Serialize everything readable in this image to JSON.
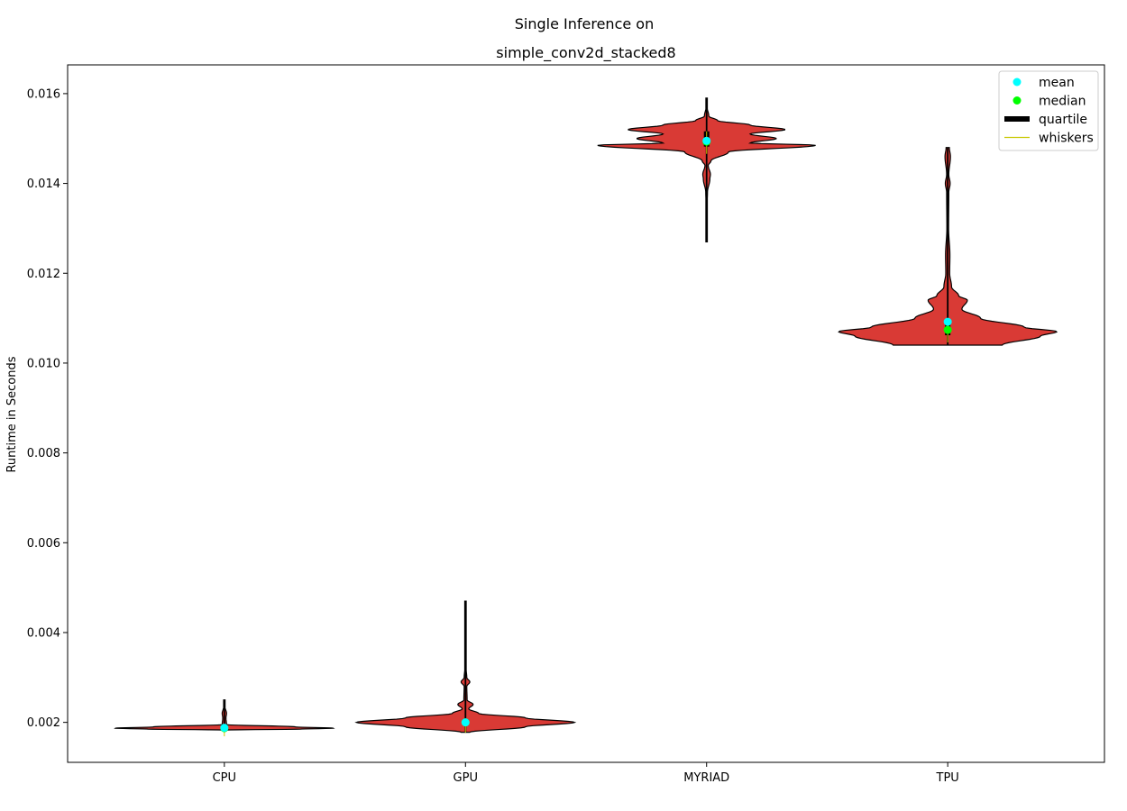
{
  "chart_data": {
    "type": "violin",
    "suptitle": "Single Inference on",
    "title": "simple_conv2d_stacked8",
    "xlabel": "",
    "ylabel": "Runtime in Seconds",
    "ylim": [
      0.00111,
      0.01664
    ],
    "yticks": [
      "0.002",
      "0.004",
      "0.006",
      "0.008",
      "0.010",
      "0.012",
      "0.014",
      "0.016"
    ],
    "ytick_values": [
      0.002,
      0.004,
      0.006,
      0.008,
      0.01,
      0.012,
      0.014,
      0.016
    ],
    "categories": [
      "CPU",
      "GPU",
      "MYRIAD",
      "TPU"
    ],
    "violin_color": "#d93a35",
    "colors": {
      "mean": "#00ffff",
      "median": "#00ff00",
      "quartile": "#000000",
      "whiskers": "#c8c800"
    },
    "legend": {
      "position": "top-right",
      "entries": [
        {
          "key": "mean",
          "label": "mean"
        },
        {
          "key": "median",
          "label": "median"
        },
        {
          "key": "quartile",
          "label": "quartile"
        },
        {
          "key": "whiskers",
          "label": "whiskers"
        }
      ]
    },
    "series": [
      {
        "category": "CPU",
        "min": 0.00183,
        "max": 0.0025,
        "mean": 0.00188,
        "median": 0.00187,
        "q1": 0.00185,
        "q3": 0.0019,
        "profile": [
          [
            0.00183,
            0.02
          ],
          [
            0.00185,
            0.7
          ],
          [
            0.00187,
            1.0
          ],
          [
            0.0019,
            0.65
          ],
          [
            0.00195,
            0.02
          ],
          [
            0.0021,
            0.015
          ],
          [
            0.0022,
            0.02
          ],
          [
            0.00235,
            0.006
          ],
          [
            0.0025,
            0.003
          ]
        ]
      },
      {
        "category": "GPU",
        "min": 0.00178,
        "max": 0.0047,
        "mean": 0.002,
        "median": 0.002,
        "q1": 0.00193,
        "q3": 0.00207,
        "profile": [
          [
            0.00178,
            0.04
          ],
          [
            0.0019,
            0.55
          ],
          [
            0.002,
            1.0
          ],
          [
            0.0021,
            0.55
          ],
          [
            0.0022,
            0.12
          ],
          [
            0.0023,
            0.03
          ],
          [
            0.0024,
            0.07
          ],
          [
            0.0025,
            0.015
          ],
          [
            0.0028,
            0.012
          ],
          [
            0.0029,
            0.04
          ],
          [
            0.003,
            0.012
          ],
          [
            0.0032,
            0.006
          ],
          [
            0.0037,
            0.003
          ],
          [
            0.0047,
            0.002
          ]
        ]
      },
      {
        "category": "MYRIAD",
        "min": 0.0127,
        "max": 0.0159,
        "mean": 0.01495,
        "median": 0.01493,
        "q1": 0.01482,
        "q3": 0.01516,
        "profile": [
          [
            0.0127,
            0.002
          ],
          [
            0.0135,
            0.004
          ],
          [
            0.0138,
            0.008
          ],
          [
            0.0141,
            0.03
          ],
          [
            0.0142,
            0.035
          ],
          [
            0.0144,
            0.015
          ],
          [
            0.0145,
            0.04
          ],
          [
            0.0147,
            0.2
          ],
          [
            0.01485,
            1.0
          ],
          [
            0.0149,
            0.4
          ],
          [
            0.015,
            0.64
          ],
          [
            0.0151,
            0.4
          ],
          [
            0.0152,
            0.72
          ],
          [
            0.0153,
            0.4
          ],
          [
            0.0154,
            0.1
          ],
          [
            0.0155,
            0.02
          ],
          [
            0.0157,
            0.005
          ],
          [
            0.0159,
            0.002
          ]
        ]
      },
      {
        "category": "TPU",
        "min": 0.0104,
        "max": 0.0148,
        "mean": 0.01092,
        "median": 0.01074,
        "q1": 0.01062,
        "q3": 0.01095,
        "profile": [
          [
            0.0104,
            0.5
          ],
          [
            0.0106,
            0.85
          ],
          [
            0.0107,
            1.0
          ],
          [
            0.0108,
            0.7
          ],
          [
            0.011,
            0.3
          ],
          [
            0.0112,
            0.13
          ],
          [
            0.0114,
            0.18
          ],
          [
            0.0115,
            0.1
          ],
          [
            0.0117,
            0.035
          ],
          [
            0.012,
            0.018
          ],
          [
            0.0124,
            0.02
          ],
          [
            0.013,
            0.008
          ],
          [
            0.0138,
            0.01
          ],
          [
            0.014,
            0.022
          ],
          [
            0.0142,
            0.01
          ],
          [
            0.0146,
            0.025
          ],
          [
            0.0148,
            0.015
          ]
        ]
      }
    ]
  }
}
